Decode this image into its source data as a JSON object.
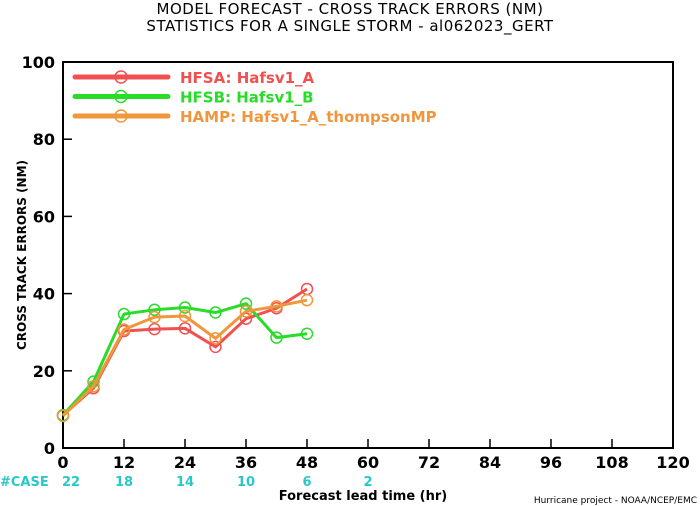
{
  "chart_data": {
    "type": "line",
    "title": [
      "MODEL FORECAST - CROSS TRACK ERRORS (NM)",
      "STATISTICS FOR A SINGLE STORM - al062023_GERT"
    ],
    "xlabel": "Forecast lead time (hr)",
    "ylabel": "CROSS TRACK ERRORS (NM)",
    "xlim": [
      0,
      120
    ],
    "ylim": [
      0,
      100
    ],
    "xticks": [
      0,
      12,
      24,
      36,
      48,
      60,
      72,
      84,
      96,
      108,
      120
    ],
    "yticks": [
      0,
      20,
      40,
      60,
      80,
      100
    ],
    "grid": false,
    "legend_position": "top-left",
    "case_label": "#CASE",
    "cases": [
      {
        "x": 0,
        "n": "22"
      },
      {
        "x": 12,
        "n": "18"
      },
      {
        "x": 24,
        "n": "14"
      },
      {
        "x": 36,
        "n": "10"
      },
      {
        "x": 48,
        "n": "6"
      },
      {
        "x": 60,
        "n": "2"
      }
    ],
    "credit": "Hurricane project - NOAA/NCEP/EMC",
    "series": [
      {
        "name": "HFSA:  Hafsv1_A",
        "color": "#f05050",
        "x": [
          0,
          6,
          12,
          18,
          24,
          30,
          36,
          42,
          48
        ],
        "y": [
          8.5,
          15.5,
          30.3,
          30.8,
          31.0,
          26.2,
          33.5,
          36.2,
          41.2
        ]
      },
      {
        "name": "HFSB:  Hafsv1_B",
        "color": "#28dc28",
        "x": [
          0,
          6,
          12,
          18,
          24,
          30,
          36,
          42,
          48
        ],
        "y": [
          8.5,
          17.2,
          34.7,
          35.8,
          36.4,
          35.1,
          37.4,
          28.6,
          29.6
        ]
      },
      {
        "name": "HAMP:  Hafsv1_A_thompsonMP",
        "color": "#f0963c",
        "x": [
          0,
          6,
          12,
          18,
          24,
          30,
          36,
          42,
          48
        ],
        "y": [
          8.3,
          16.0,
          30.7,
          33.9,
          34.2,
          28.4,
          35.4,
          36.7,
          38.3
        ]
      }
    ]
  },
  "colors": {
    "case_text": "#28c8c8",
    "axis": "#000000"
  }
}
